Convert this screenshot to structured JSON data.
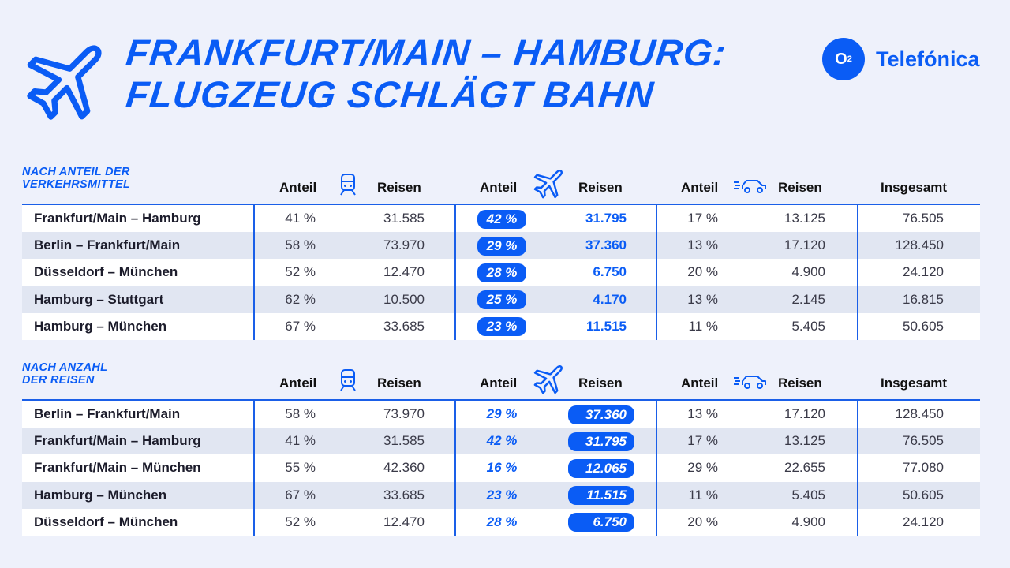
{
  "title": {
    "line1": "FRANKFURT/MAIN – HAMBURG:",
    "line2": "FLUGZEUG SCHLÄGT BAHN"
  },
  "logo": {
    "mark": "O",
    "mark_sub": "2",
    "name": "Telefónica"
  },
  "colors": {
    "accent": "#0a5cf5",
    "row_alt": "#e1e6f2",
    "background": "#eef1fb"
  },
  "icons": {
    "header": "airplane-icon",
    "bahn": "train-icon",
    "flug": "airplane-icon",
    "auto": "car-icon"
  },
  "columns": {
    "anteil": "Anteil",
    "reisen": "Reisen",
    "insgesamt": "Insgesamt"
  },
  "chart_data": [
    {
      "type": "table",
      "title": "NACH ANTEIL DER VERKEHRSMITTEL",
      "title_lines": [
        "NACH ANTEIL DER",
        "VERKEHRSMITTEL"
      ],
      "columns": [
        "Anteil (Bahn)",
        "Reisen (Bahn)",
        "Anteil (Flugzeug)",
        "Reisen (Flugzeug)",
        "Anteil (Auto)",
        "Reisen (Auto)",
        "Insgesamt"
      ],
      "highlight": "Anteil (Flugzeug)",
      "rows": [
        {
          "route": "Frankfurt/Main – Hamburg",
          "bahn_anteil": "41 %",
          "bahn_reisen": "31.585",
          "flug_anteil": "42 %",
          "flug_reisen": "31.795",
          "auto_anteil": "17 %",
          "auto_reisen": "13.125",
          "insgesamt": "76.505"
        },
        {
          "route": "Berlin – Frankfurt/Main",
          "bahn_anteil": "58 %",
          "bahn_reisen": "73.970",
          "flug_anteil": "29 %",
          "flug_reisen": "37.360",
          "auto_anteil": "13 %",
          "auto_reisen": "17.120",
          "insgesamt": "128.450"
        },
        {
          "route": "Düsseldorf – München",
          "bahn_anteil": "52 %",
          "bahn_reisen": "12.470",
          "flug_anteil": "28 %",
          "flug_reisen": "6.750",
          "auto_anteil": "20 %",
          "auto_reisen": "4.900",
          "insgesamt": "24.120"
        },
        {
          "route": "Hamburg – Stuttgart",
          "bahn_anteil": "62 %",
          "bahn_reisen": "10.500",
          "flug_anteil": "25 %",
          "flug_reisen": "4.170",
          "auto_anteil": "13 %",
          "auto_reisen": "2.145",
          "insgesamt": "16.815"
        },
        {
          "route": "Hamburg – München",
          "bahn_anteil": "67 %",
          "bahn_reisen": "33.685",
          "flug_anteil": "23 %",
          "flug_reisen": "11.515",
          "auto_anteil": "11 %",
          "auto_reisen": "5.405",
          "insgesamt": "50.605"
        }
      ]
    },
    {
      "type": "table",
      "title": "NACH ANZAHL DER REISEN",
      "title_lines": [
        "NACH ANZAHL",
        "DER REISEN"
      ],
      "columns": [
        "Anteil (Bahn)",
        "Reisen (Bahn)",
        "Anteil (Flugzeug)",
        "Reisen (Flugzeug)",
        "Anteil (Auto)",
        "Reisen (Auto)",
        "Insgesamt"
      ],
      "highlight": "Reisen (Flugzeug)",
      "rows": [
        {
          "route": "Berlin – Frankfurt/Main",
          "bahn_anteil": "58 %",
          "bahn_reisen": "73.970",
          "flug_anteil": "29 %",
          "flug_reisen": "37.360",
          "auto_anteil": "13 %",
          "auto_reisen": "17.120",
          "insgesamt": "128.450"
        },
        {
          "route": "Frankfurt/Main – Hamburg",
          "bahn_anteil": "41 %",
          "bahn_reisen": "31.585",
          "flug_anteil": "42 %",
          "flug_reisen": "31.795",
          "auto_anteil": "17 %",
          "auto_reisen": "13.125",
          "insgesamt": "76.505"
        },
        {
          "route": "Frankfurt/Main – München",
          "bahn_anteil": "55 %",
          "bahn_reisen": "42.360",
          "flug_anteil": "16 %",
          "flug_reisen": "12.065",
          "auto_anteil": "29 %",
          "auto_reisen": "22.655",
          "insgesamt": "77.080"
        },
        {
          "route": "Hamburg – München",
          "bahn_anteil": "67 %",
          "bahn_reisen": "33.685",
          "flug_anteil": "23 %",
          "flug_reisen": "11.515",
          "auto_anteil": "11 %",
          "auto_reisen": "5.405",
          "insgesamt": "50.605"
        },
        {
          "route": "Düsseldorf – München",
          "bahn_anteil": "52 %",
          "bahn_reisen": "12.470",
          "flug_anteil": "28 %",
          "flug_reisen": "6.750",
          "auto_anteil": "20 %",
          "auto_reisen": "4.900",
          "insgesamt": "24.120"
        }
      ]
    }
  ]
}
